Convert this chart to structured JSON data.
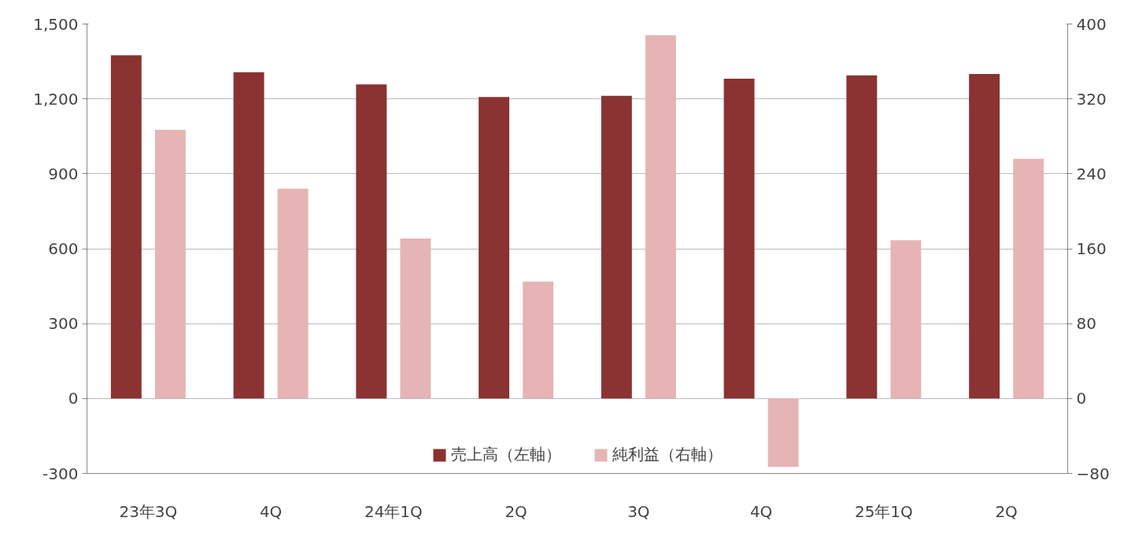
{
  "chart_data": {
    "type": "bar",
    "categories": [
      "23年3Q",
      "4Q",
      "24年1Q",
      "2Q",
      "3Q",
      "4Q",
      "25年1Q",
      "2Q"
    ],
    "series": [
      {
        "name": "売上高（左軸）",
        "color": "#8b3232",
        "values": [
          1375,
          1307,
          1258,
          1208,
          1212,
          1281,
          1294,
          1300
        ]
      },
      {
        "name": "純利益（右軸）",
        "color": "#e6b4b4",
        "axis": "y2",
        "values": [
          287,
          224,
          171,
          125,
          388,
          -73,
          169,
          256
        ]
      }
    ],
    "ylim": [
      -300,
      1500
    ],
    "yticks": [
      {
        "value": -300,
        "label": "-300"
      },
      0,
      300,
      600,
      900,
      {
        "value": 1200,
        "label": "1,200"
      },
      {
        "value": 1500,
        "label": "1,500"
      }
    ],
    "y2lim": [
      -80,
      400
    ],
    "y2ticks": [
      -80,
      0,
      80,
      160,
      240,
      320,
      400
    ],
    "grid": "y",
    "legend": "bottom"
  }
}
